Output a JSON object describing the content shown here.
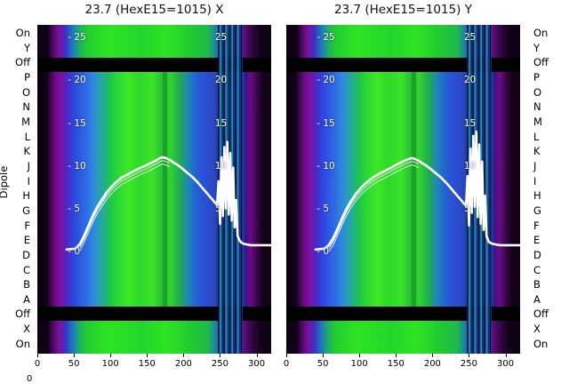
{
  "axis": {
    "dipole_label": "Dipole",
    "stray_tick_label": "0",
    "x_tick_labels": [
      "0",
      "50",
      "100",
      "150",
      "200",
      "250",
      "300"
    ],
    "x_tick_values": [
      0,
      50,
      100,
      150,
      200,
      250,
      300
    ],
    "inner_y_left_labels": [
      "- 25",
      "- 20",
      "- 15",
      "- 10",
      "- 5",
      "- 0"
    ],
    "inner_y_left_values": [
      25,
      20,
      15,
      10,
      5,
      0
    ],
    "inner_y_right_labels": [
      "25",
      "20",
      "15",
      "10",
      "5"
    ],
    "inner_y_right_values": [
      25,
      20,
      15,
      10,
      5
    ]
  },
  "chart_data": {
    "type": "heatmap",
    "layout": "two horizontal heatmap subplots with shared categorical row labels on both outer sides and a white overlay line in each",
    "colormap": "dark purple - purple - blue - green (nipy-spectral-like)",
    "overlay_line_color": "#ffffff",
    "ylabel": "Dipole",
    "x_range": [
      0,
      320
    ],
    "x_ticks": [
      0,
      50,
      100,
      150,
      200,
      250,
      300
    ],
    "inner_y_ticks": [
      0,
      5,
      10,
      15,
      20,
      25
    ],
    "value_display_range": [
      -12,
      26.5
    ],
    "rows_top_to_bottom": [
      "On",
      "Y",
      "Off",
      "P",
      "O",
      "N",
      "M",
      "L",
      "K",
      "J",
      "I",
      "H",
      "G",
      "F",
      "E",
      "D",
      "C",
      "B",
      "A",
      "Off",
      "X",
      "On"
    ],
    "subplots": [
      {
        "title": "23.7 (HexE15=1015) X",
        "line": {
          "x": [
            40,
            52,
            58,
            64,
            70,
            76,
            82,
            88,
            95,
            102,
            108,
            115,
            122,
            128,
            135,
            142,
            148,
            155,
            162,
            168,
            172,
            176,
            181,
            186,
            192,
            198,
            205,
            212,
            219,
            226,
            232,
            238,
            243,
            246,
            248,
            250,
            252,
            254,
            256,
            258,
            260,
            262,
            264,
            266,
            268,
            270,
            272,
            274,
            277,
            281,
            286,
            292,
            300,
            310,
            320
          ],
          "y": [
            0.2,
            0.3,
            0.8,
            1.8,
            3.0,
            4.2,
            5.2,
            6.0,
            6.9,
            7.6,
            8.1,
            8.6,
            8.9,
            9.2,
            9.5,
            9.8,
            10.0,
            10.3,
            10.6,
            10.9,
            11.0,
            10.9,
            10.7,
            10.4,
            10.1,
            9.7,
            9.2,
            8.7,
            8.1,
            7.4,
            6.8,
            6.2,
            5.7,
            5.4,
            8.2,
            3.2,
            11.0,
            4.1,
            12.2,
            5.0,
            12.8,
            4.3,
            11.5,
            3.6,
            9.8,
            2.8,
            6.0,
            1.8,
            1.2,
            0.9,
            0.8,
            0.7,
            0.7,
            0.7,
            0.7
          ]
        }
      },
      {
        "title": "23.7 (HexE15=1015) Y",
        "line": {
          "x": [
            40,
            52,
            58,
            64,
            70,
            76,
            82,
            88,
            95,
            102,
            108,
            115,
            122,
            128,
            135,
            142,
            148,
            155,
            162,
            168,
            172,
            176,
            181,
            186,
            192,
            198,
            205,
            212,
            219,
            226,
            232,
            238,
            243,
            246,
            248,
            250,
            252,
            254,
            256,
            258,
            260,
            262,
            264,
            266,
            268,
            270,
            272,
            274,
            277,
            281,
            286,
            292,
            300,
            310,
            320
          ],
          "y": [
            0.2,
            0.3,
            0.7,
            1.5,
            2.6,
            3.8,
            4.9,
            5.8,
            6.7,
            7.4,
            7.9,
            8.4,
            8.8,
            9.1,
            9.4,
            9.7,
            10.0,
            10.3,
            10.6,
            10.8,
            10.9,
            10.8,
            10.6,
            10.3,
            10.0,
            9.6,
            9.1,
            8.6,
            8.0,
            7.3,
            6.7,
            6.1,
            5.6,
            5.3,
            8.8,
            3.0,
            12.0,
            4.5,
            13.5,
            5.2,
            14.0,
            4.0,
            12.5,
            3.2,
            10.5,
            2.5,
            6.5,
            1.8,
            1.1,
            0.9,
            0.8,
            0.7,
            0.7,
            0.7,
            0.7
          ]
        }
      }
    ]
  }
}
